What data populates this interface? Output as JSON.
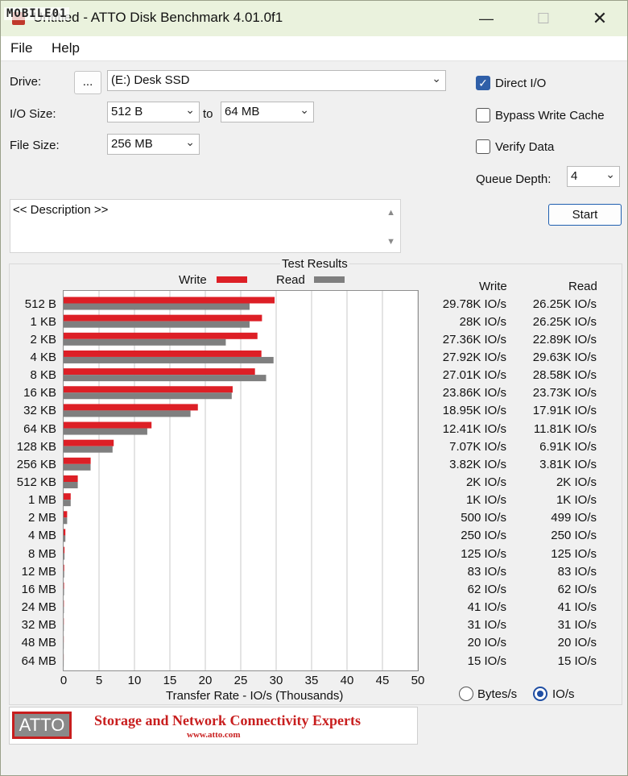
{
  "window": {
    "title": "Untitled - ATTO Disk Benchmark 4.01.0f1",
    "watermark": "MOBILE01",
    "minimize_icon": "minimize-icon",
    "maximize_icon": "maximize-icon",
    "close_icon": "close-icon"
  },
  "menu": {
    "file": "File",
    "help": "Help"
  },
  "drive": {
    "label": "Drive:",
    "browse_label": "...",
    "value": "(E:) Desk SSD"
  },
  "io_size": {
    "label": "I/O Size:",
    "from": "512 B",
    "to_label": "to",
    "to": "64 MB"
  },
  "file_size": {
    "label": "File Size:",
    "value": "256 MB"
  },
  "options": {
    "direct_io": {
      "label": "Direct I/O",
      "checked": true
    },
    "bypass_write_cache": {
      "label": "Bypass Write Cache",
      "checked": false
    },
    "verify_data": {
      "label": "Verify Data",
      "checked": false
    },
    "queue_depth_label": "Queue Depth:",
    "queue_depth": "4"
  },
  "start_label": "Start",
  "description": "<< Description >>",
  "results": {
    "title": "Test Results",
    "col_write": "Write",
    "col_read": "Read",
    "write_values": [
      "29.78K IO/s",
      "28K IO/s",
      "27.36K IO/s",
      "27.92K IO/s",
      "27.01K IO/s",
      "23.86K IO/s",
      "18.95K IO/s",
      "12.41K IO/s",
      "7.07K IO/s",
      "3.82K IO/s",
      "2K IO/s",
      "1K IO/s",
      "500 IO/s",
      "250 IO/s",
      "125 IO/s",
      "83 IO/s",
      "62 IO/s",
      "41 IO/s",
      "31 IO/s",
      "20 IO/s",
      "15 IO/s"
    ],
    "read_values": [
      "26.25K IO/s",
      "26.25K IO/s",
      "22.89K IO/s",
      "29.63K IO/s",
      "28.58K IO/s",
      "23.73K IO/s",
      "17.91K IO/s",
      "11.81K IO/s",
      "6.91K IO/s",
      "3.81K IO/s",
      "2K IO/s",
      "1K IO/s",
      "499 IO/s",
      "250 IO/s",
      "125 IO/s",
      "83 IO/s",
      "62 IO/s",
      "41 IO/s",
      "31 IO/s",
      "20 IO/s",
      "15 IO/s"
    ]
  },
  "units": {
    "bytes_label": "Bytes/s",
    "iops_label": "IO/s",
    "selected": "IO/s"
  },
  "banner": {
    "logo": "ATTO",
    "tagline": "Storage and Network Connectivity Experts",
    "url": "www.atto.com"
  },
  "colors": {
    "write": "#dd1f26",
    "read": "#7f7f7f",
    "accent": "#2f5fa8"
  },
  "chart_data": {
    "type": "bar",
    "orientation": "horizontal",
    "categories": [
      "512 B",
      "1 KB",
      "2 KB",
      "4 KB",
      "8 KB",
      "16 KB",
      "32 KB",
      "64 KB",
      "128 KB",
      "256 KB",
      "512 KB",
      "1 MB",
      "2 MB",
      "4 MB",
      "8 MB",
      "12 MB",
      "16 MB",
      "24 MB",
      "32 MB",
      "48 MB",
      "64 MB"
    ],
    "series": [
      {
        "name": "Write",
        "color": "#dd1f26",
        "values": [
          29.78,
          28,
          27.36,
          27.92,
          27.01,
          23.86,
          18.95,
          12.41,
          7.07,
          3.82,
          2,
          1,
          0.5,
          0.25,
          0.125,
          0.083,
          0.062,
          0.041,
          0.031,
          0.02,
          0.015
        ]
      },
      {
        "name": "Read",
        "color": "#7f7f7f",
        "values": [
          26.25,
          26.25,
          22.89,
          29.63,
          28.58,
          23.73,
          17.91,
          11.81,
          6.91,
          3.81,
          2,
          1,
          0.499,
          0.25,
          0.125,
          0.083,
          0.062,
          0.041,
          0.031,
          0.02,
          0.015
        ]
      }
    ],
    "xlabel": "Transfer Rate - IO/s (Thousands)",
    "ylabel": "",
    "xlim": [
      0,
      50
    ],
    "xticks": [
      "0",
      "5",
      "10",
      "15",
      "20",
      "25",
      "30",
      "35",
      "40",
      "45",
      "50"
    ],
    "grid": true,
    "legend": "top"
  }
}
